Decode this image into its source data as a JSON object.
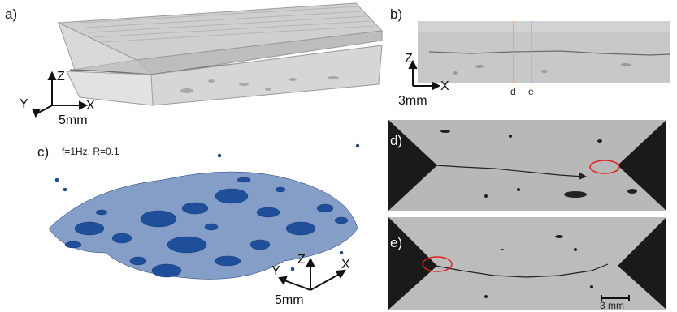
{
  "panels": {
    "a": {
      "label": "a)",
      "axes": {
        "z": "Z",
        "y": "Y",
        "x": "X"
      },
      "scale": "5mm"
    },
    "b": {
      "label": "b)",
      "axes": {
        "z": "Z",
        "x": "X"
      },
      "scale": "3mm",
      "markers": [
        "d",
        "e"
      ],
      "marker_color": "#e8a060"
    },
    "c": {
      "label": "c)",
      "condition": "f=1Hz, R=0.1",
      "axes": {
        "z": "Z",
        "y": "Y",
        "x": "X"
      },
      "scale": "5mm",
      "pore_color": "#1f4f9a"
    },
    "d": {
      "label": "d)",
      "highlight_color": "#e02020"
    },
    "e": {
      "label": "e)",
      "scale": "3 mm",
      "highlight_color": "#e02020"
    }
  }
}
